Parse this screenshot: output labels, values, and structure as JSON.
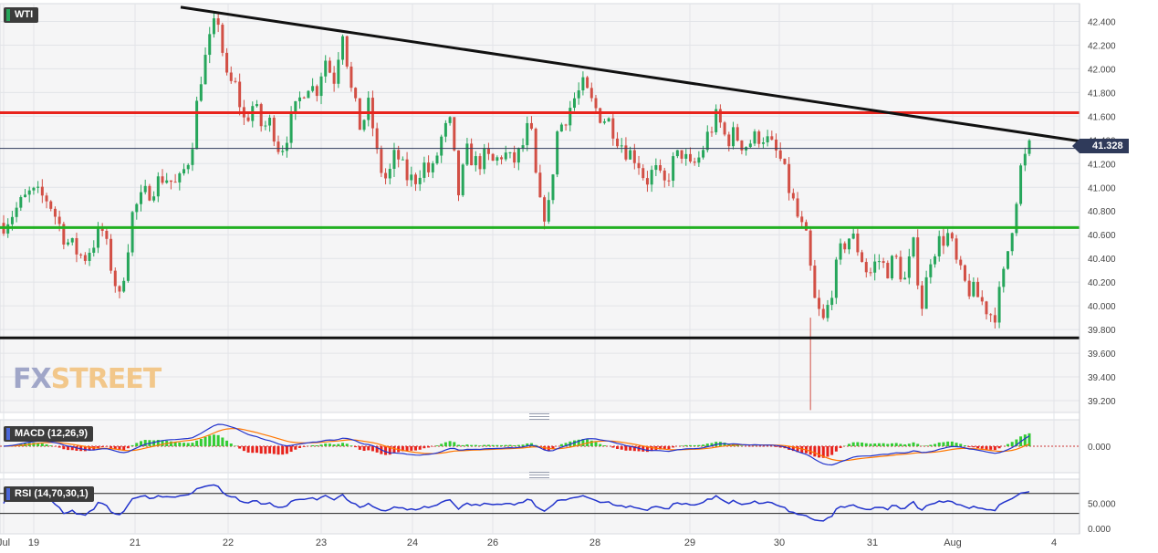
{
  "symbol": "WTI",
  "last_price": "41.328",
  "watermark": {
    "part1": "FX",
    "part2": "STREET"
  },
  "indicators": {
    "macd_label": "MACD (12,26,9)",
    "rsi_label": "RSI (14,70,30,1)"
  },
  "colors": {
    "bull": "#26a65b",
    "bear": "#d24f45",
    "resistance": "#e8231c",
    "support_mid": "#22b022",
    "support_low": "#111111",
    "trendline": "#111111",
    "macd_line": "#2233cc",
    "signal_line": "#ff7700",
    "hist_pos": "#33cc33",
    "hist_neg": "#e8231c",
    "rsi_line": "#2233cc"
  },
  "chart_data": {
    "type": "candlestick",
    "y_axis_ticks": [
      "42.400",
      "42.200",
      "42.000",
      "41.800",
      "41.600",
      "41.400",
      "41.200",
      "41.000",
      "40.800",
      "40.600",
      "40.400",
      "40.200",
      "40.000",
      "39.800",
      "39.600",
      "39.400",
      "39.200"
    ],
    "x_axis_ticks": [
      "Jul",
      "19",
      "21",
      "22",
      "23",
      "24",
      "26",
      "28",
      "29",
      "30",
      "31",
      "Aug",
      "4"
    ],
    "ylim": [
      39.1,
      42.55
    ],
    "horizontal_lines": [
      {
        "name": "resistance",
        "value": 41.63
      },
      {
        "name": "support",
        "value": 40.66
      },
      {
        "name": "support-low",
        "value": 39.73
      }
    ],
    "trendline": {
      "from": {
        "x": "21",
        "price": 42.52
      },
      "to": {
        "x": "Aug",
        "price": 41.39
      }
    },
    "path_points": [
      [
        0,
        40.7
      ],
      [
        3,
        40.95
      ],
      [
        5,
        40.9
      ],
      [
        7,
        40.55
      ],
      [
        9,
        40.4
      ],
      [
        11,
        40.65
      ],
      [
        13,
        40.05
      ],
      [
        14.5,
        40.8
      ],
      [
        16,
        40.95
      ],
      [
        18,
        41.1
      ],
      [
        19.5,
        41.0
      ],
      [
        21,
        41.3
      ],
      [
        22,
        41.9
      ],
      [
        23,
        42.2
      ],
      [
        24,
        42.45
      ],
      [
        25,
        41.9
      ],
      [
        26,
        41.85
      ],
      [
        27,
        41.55
      ],
      [
        28,
        41.7
      ],
      [
        29,
        41.5
      ],
      [
        30,
        41.55
      ],
      [
        31,
        41.3
      ],
      [
        32,
        41.5
      ],
      [
        33,
        41.7
      ],
      [
        34,
        41.9
      ],
      [
        35,
        41.8
      ],
      [
        36,
        42.1
      ],
      [
        37,
        41.9
      ],
      [
        38,
        42.35
      ],
      [
        39,
        41.8
      ],
      [
        40,
        41.5
      ],
      [
        41,
        41.7
      ],
      [
        42,
        41.2
      ],
      [
        43,
        41.05
      ],
      [
        44,
        41.3
      ],
      [
        45,
        41.1
      ],
      [
        46,
        41.05
      ],
      [
        47,
        41.2
      ],
      [
        48,
        41.1
      ],
      [
        49,
        41.4
      ],
      [
        50,
        41.55
      ],
      [
        51,
        40.95
      ],
      [
        52,
        41.3
      ],
      [
        53,
        41.2
      ],
      [
        54,
        41.25
      ],
      [
        55,
        41.2
      ],
      [
        56,
        41.3
      ],
      [
        57,
        41.2
      ],
      [
        58,
        41.3
      ],
      [
        59,
        41.55
      ],
      [
        60,
        40.85
      ],
      [
        61,
        40.75
      ],
      [
        62,
        41.45
      ],
      [
        63,
        41.6
      ],
      [
        64,
        41.75
      ],
      [
        65,
        41.85
      ],
      [
        66,
        41.7
      ],
      [
        67,
        41.6
      ],
      [
        68,
        41.55
      ],
      [
        69,
        41.4
      ],
      [
        70,
        41.3
      ],
      [
        71,
        41.25
      ],
      [
        72,
        41.05
      ],
      [
        73,
        41.15
      ],
      [
        74,
        41.0
      ],
      [
        75,
        41.2
      ],
      [
        76,
        41.3
      ],
      [
        77,
        41.15
      ],
      [
        78,
        41.25
      ],
      [
        79,
        41.45
      ],
      [
        80,
        41.6
      ],
      [
        81,
        41.4
      ],
      [
        82,
        41.45
      ],
      [
        83,
        41.35
      ],
      [
        84,
        41.4
      ],
      [
        85,
        41.45
      ],
      [
        86,
        41.35
      ],
      [
        87,
        41.25
      ],
      [
        88,
        41.0
      ],
      [
        89,
        40.75
      ],
      [
        90,
        40.55
      ],
      [
        91,
        40.0
      ],
      [
        92,
        39.85
      ],
      [
        93,
        40.2
      ],
      [
        94,
        40.5
      ],
      [
        95,
        40.6
      ],
      [
        96,
        40.45
      ],
      [
        97,
        40.25
      ],
      [
        98,
        40.4
      ],
      [
        99,
        40.3
      ],
      [
        100,
        40.4
      ],
      [
        101,
        40.2
      ],
      [
        102,
        40.5
      ],
      [
        103,
        40.0
      ],
      [
        104,
        40.45
      ],
      [
        105,
        40.55
      ],
      [
        106,
        40.6
      ],
      [
        107,
        40.3
      ],
      [
        108,
        40.15
      ],
      [
        109,
        40.1
      ],
      [
        110,
        40.0
      ],
      [
        111,
        39.9
      ],
      [
        112,
        40.2
      ],
      [
        113,
        40.65
      ],
      [
        114,
        41.15
      ],
      [
        115,
        41.33
      ]
    ]
  }
}
